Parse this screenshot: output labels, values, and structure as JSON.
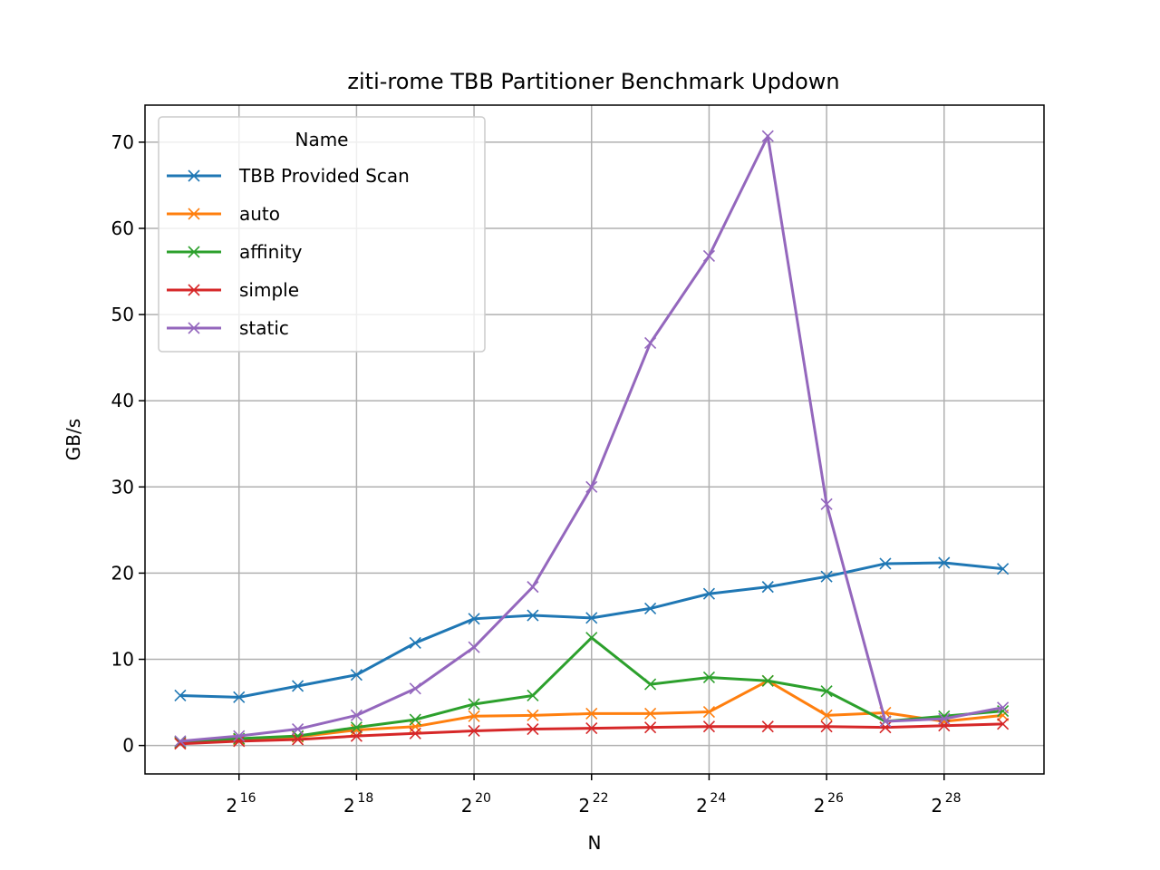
{
  "chart_data": {
    "type": "line",
    "title": "ziti-rome TBB Partitioner Benchmark Updown",
    "xlabel": "N",
    "ylabel": "GB/s",
    "x_scale": "log2",
    "x_exponents": [
      15,
      16,
      17,
      18,
      19,
      20,
      21,
      22,
      23,
      24,
      25,
      26,
      27,
      28,
      29
    ],
    "x_tick_exponents": [
      "16",
      "18",
      "20",
      "22",
      "24",
      "26",
      "28"
    ],
    "x_tick_base": "2",
    "y_ticks": [
      "0",
      "10",
      "20",
      "30",
      "40",
      "50",
      "60",
      "70"
    ],
    "xlim_exp": [
      14.4,
      29.7
    ],
    "ylim": [
      -3.3,
      74.3
    ],
    "grid": true,
    "marker": "x",
    "legend_title": "Name",
    "legend_position": "upper left",
    "series": [
      {
        "name": "TBB Provided Scan",
        "color": "#1f77b4",
        "values": [
          5.8,
          5.6,
          6.9,
          8.2,
          11.9,
          14.7,
          15.1,
          14.8,
          15.9,
          17.6,
          18.4,
          19.6,
          21.1,
          21.2,
          20.5
        ]
      },
      {
        "name": "auto",
        "color": "#ff7f0e",
        "values": [
          0.3,
          0.7,
          1.0,
          1.8,
          2.2,
          3.4,
          3.5,
          3.7,
          3.7,
          3.9,
          7.5,
          3.5,
          3.8,
          2.8,
          3.5
        ]
      },
      {
        "name": "affinity",
        "color": "#2ca02c",
        "values": [
          0.4,
          0.8,
          1.1,
          2.1,
          3.0,
          4.8,
          5.8,
          12.5,
          7.1,
          7.9,
          7.5,
          6.3,
          2.8,
          3.4,
          4.0
        ]
      },
      {
        "name": "simple",
        "color": "#d62728",
        "values": [
          0.2,
          0.5,
          0.7,
          1.1,
          1.4,
          1.7,
          1.9,
          2.0,
          2.1,
          2.2,
          2.2,
          2.2,
          2.1,
          2.3,
          2.5
        ]
      },
      {
        "name": "static",
        "color": "#9467bd",
        "values": [
          0.5,
          1.1,
          1.9,
          3.5,
          6.6,
          11.4,
          18.4,
          30.0,
          46.7,
          56.8,
          70.7,
          28.0,
          2.8,
          3.1,
          4.4
        ]
      }
    ]
  }
}
